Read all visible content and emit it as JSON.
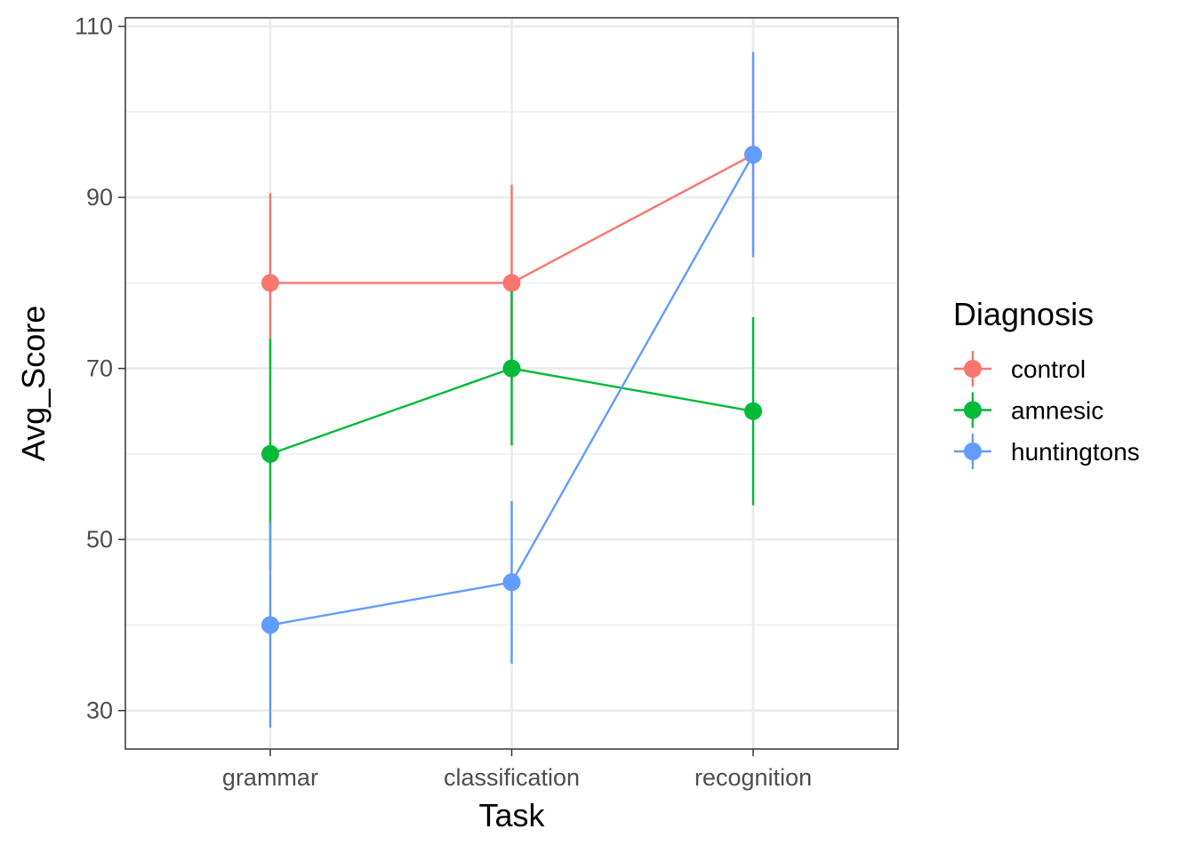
{
  "chart_data": {
    "type": "line",
    "xlabel": "Task",
    "ylabel": "Avg_Score",
    "categories": [
      "grammar",
      "classification",
      "recognition"
    ],
    "ylim": [
      25.5,
      111
    ],
    "yticks": [
      30,
      50,
      70,
      90,
      110
    ],
    "yminor": [
      40,
      60,
      80,
      100
    ],
    "grid": true,
    "legend": {
      "title": "Diagnosis",
      "position": "right"
    },
    "series": [
      {
        "name": "control",
        "color": "#F8766D",
        "values": [
          80,
          80,
          95
        ],
        "err_low": [
          69.5,
          68.5,
          83.5
        ],
        "err_high": [
          90.5,
          91.5,
          106.5
        ]
      },
      {
        "name": "amnesic",
        "color": "#00BA38",
        "values": [
          60,
          70,
          65
        ],
        "err_low": [
          46.5,
          61,
          54
        ],
        "err_high": [
          73.5,
          79,
          76
        ]
      },
      {
        "name": "huntingtons",
        "color": "#619CFF",
        "values": [
          40,
          45,
          95
        ],
        "err_low": [
          28,
          35.5,
          83
        ],
        "err_high": [
          52,
          54.5,
          107
        ]
      }
    ]
  }
}
